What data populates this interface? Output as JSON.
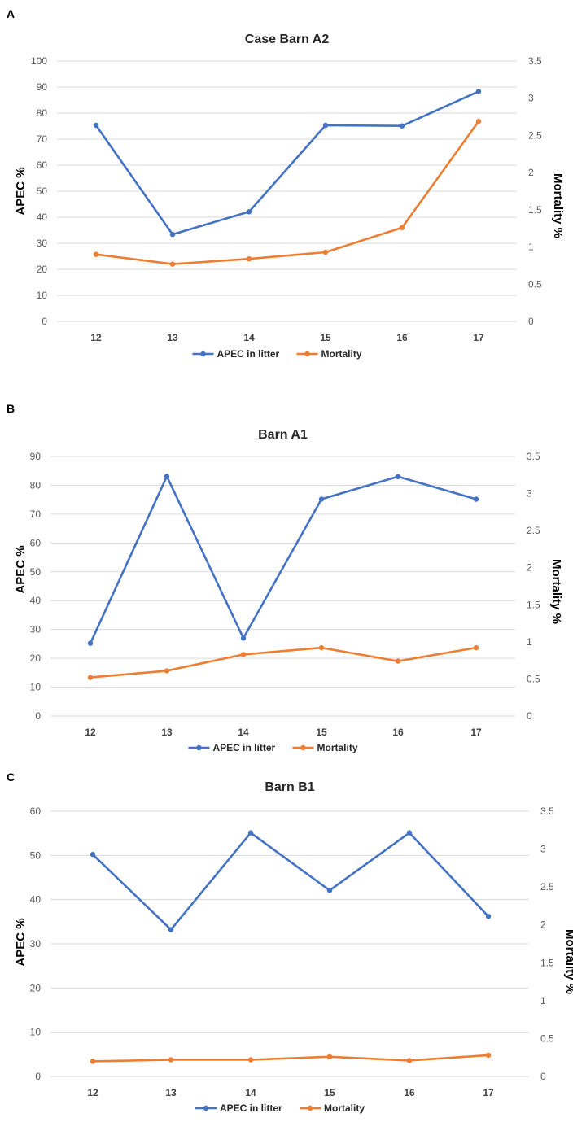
{
  "colors": {
    "apec": "#4472c4",
    "mortality": "#ed7d31"
  },
  "chart_data": [
    {
      "type": "line",
      "panel_label": "A",
      "title": "Case Barn A2",
      "xlabel": "",
      "ylabel": "APEC %",
      "y2label": "Mortality %",
      "categories": [
        "12",
        "13",
        "14",
        "15",
        "16",
        "17"
      ],
      "ylim": [
        0,
        100
      ],
      "yticks": [
        "0",
        "10",
        "20",
        "30",
        "40",
        "50",
        "60",
        "70",
        "80",
        "90",
        "100"
      ],
      "y2lim": [
        0,
        3.5
      ],
      "y2ticks": [
        "0",
        "0.5",
        "1",
        "1.5",
        "2",
        "2.5",
        "3",
        "3.5"
      ],
      "series": [
        {
          "name": "APEC in litter",
          "axis": "left",
          "values": [
            75.3,
            33.4,
            42.1,
            75.3,
            75.1,
            88.3
          ]
        },
        {
          "name": "Mortality",
          "axis": "right",
          "values": [
            0.9,
            0.77,
            0.84,
            0.93,
            1.26,
            2.69
          ]
        }
      ],
      "legend_position": "bottom"
    },
    {
      "type": "line",
      "panel_label": "B",
      "title": "Barn A1",
      "xlabel": "",
      "ylabel": "APEC %",
      "y2label": "Mortality %",
      "categories": [
        "12",
        "13",
        "14",
        "15",
        "16",
        "17"
      ],
      "ylim": [
        0,
        90
      ],
      "yticks": [
        "0",
        "10",
        "20",
        "30",
        "40",
        "50",
        "60",
        "70",
        "80",
        "90"
      ],
      "y2lim": [
        0,
        3.5
      ],
      "y2ticks": [
        "0",
        "0.5",
        "1",
        "1.5",
        "2",
        "2.5",
        "3",
        "3.5"
      ],
      "series": [
        {
          "name": "APEC in litter",
          "axis": "left",
          "values": [
            25.2,
            83.1,
            27.0,
            75.2,
            83.0,
            75.2
          ]
        },
        {
          "name": "Mortality",
          "axis": "right",
          "values": [
            0.52,
            0.61,
            0.83,
            0.92,
            0.74,
            0.92
          ]
        }
      ],
      "legend_position": "bottom"
    },
    {
      "type": "line",
      "panel_label": "C",
      "title": "Barn B1",
      "xlabel": "",
      "ylabel": "APEC %",
      "y2label": "Mortality %",
      "categories": [
        "12",
        "13",
        "14",
        "15",
        "16",
        "17"
      ],
      "ylim": [
        0,
        60
      ],
      "yticks": [
        "0",
        "10",
        "20",
        "30",
        "40",
        "50",
        "60"
      ],
      "y2lim": [
        0,
        3.5
      ],
      "y2ticks": [
        "0",
        "0.5",
        "1",
        "1.5",
        "2",
        "2.5",
        "3",
        "3.5"
      ],
      "series": [
        {
          "name": "APEC in litter",
          "axis": "left",
          "values": [
            50.2,
            33.2,
            55.1,
            42.1,
            55.1,
            36.2
          ]
        },
        {
          "name": "Mortality",
          "axis": "right",
          "values": [
            0.2,
            0.22,
            0.22,
            0.26,
            0.21,
            0.28
          ]
        }
      ],
      "legend_position": "bottom"
    }
  ]
}
